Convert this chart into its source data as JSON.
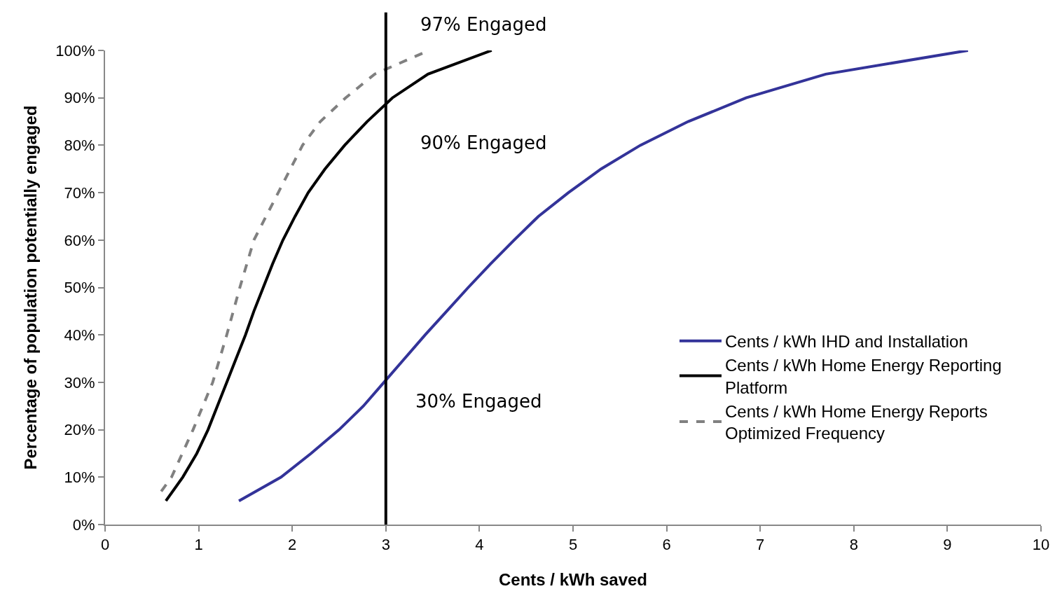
{
  "chart_data": {
    "type": "line",
    "xlabel": "Cents / kWh saved",
    "ylabel": "Percentage of population potentially engaged",
    "xlim": [
      0,
      10
    ],
    "xticks": [
      0,
      1,
      2,
      3,
      4,
      5,
      6,
      7,
      8,
      9,
      10
    ],
    "ylim": [
      0,
      100
    ],
    "yticks": [
      {
        "value": 0,
        "label": "0%"
      },
      {
        "value": 10,
        "label": "10%"
      },
      {
        "value": 20,
        "label": "20%"
      },
      {
        "value": 30,
        "label": "30%"
      },
      {
        "value": 40,
        "label": "40%"
      },
      {
        "value": 50,
        "label": "50%"
      },
      {
        "value": 60,
        "label": "60%"
      },
      {
        "value": 70,
        "label": "70%"
      },
      {
        "value": 80,
        "label": "80%"
      },
      {
        "value": 90,
        "label": "90%"
      },
      {
        "value": 100,
        "label": "100%"
      }
    ],
    "grid": false,
    "legend": "right",
    "marker": "none",
    "series": [
      {
        "name": "Cents / kWh IHD and Installation",
        "color": "#333399",
        "line_style": "solid",
        "x": [
          1.43,
          1.88,
          2.2,
          2.5,
          2.76,
          2.98,
          3.2,
          3.42,
          3.65,
          3.88,
          4.12,
          4.37,
          4.63,
          4.95,
          5.3,
          5.72,
          6.23,
          6.85,
          7.7,
          9.22
        ],
        "values": [
          5,
          10,
          15,
          20,
          25,
          30,
          35,
          40,
          45,
          50,
          55,
          60,
          65,
          70,
          75,
          80,
          85,
          90,
          95,
          100
        ]
      },
      {
        "name": "Cents / kWh Home Energy Reporting Platform",
        "color": "#000000",
        "line_style": "solid",
        "x": [
          0.65,
          0.83,
          0.98,
          1.1,
          1.2,
          1.3,
          1.4,
          1.5,
          1.59,
          1.69,
          1.79,
          1.9,
          2.03,
          2.17,
          2.35,
          2.56,
          2.8,
          3.07,
          3.45,
          4.13
        ],
        "values": [
          5,
          10,
          15,
          20,
          25,
          30,
          35,
          40,
          45,
          50,
          55,
          60,
          65,
          70,
          75,
          80,
          85,
          90,
          95,
          100
        ]
      },
      {
        "name": "Cents / kWh Home Energy Reports Optimized Frequency",
        "color": "#808080",
        "line_style": "dashed",
        "x": [
          0.6,
          0.71,
          0.94,
          1.15,
          1.3,
          1.44,
          1.59,
          1.85,
          2.11,
          2.3,
          2.57,
          2.88,
          3.46
        ],
        "values": [
          7,
          10,
          20,
          30,
          40,
          50,
          60,
          70,
          80,
          85,
          90,
          95,
          100
        ]
      }
    ],
    "ref_lines": [
      {
        "axis": "x",
        "value": 3,
        "color": "#000000",
        "line_style": "solid"
      }
    ],
    "annotations": [
      "97% Engaged",
      "90% Engaged",
      "30% Engaged"
    ]
  }
}
